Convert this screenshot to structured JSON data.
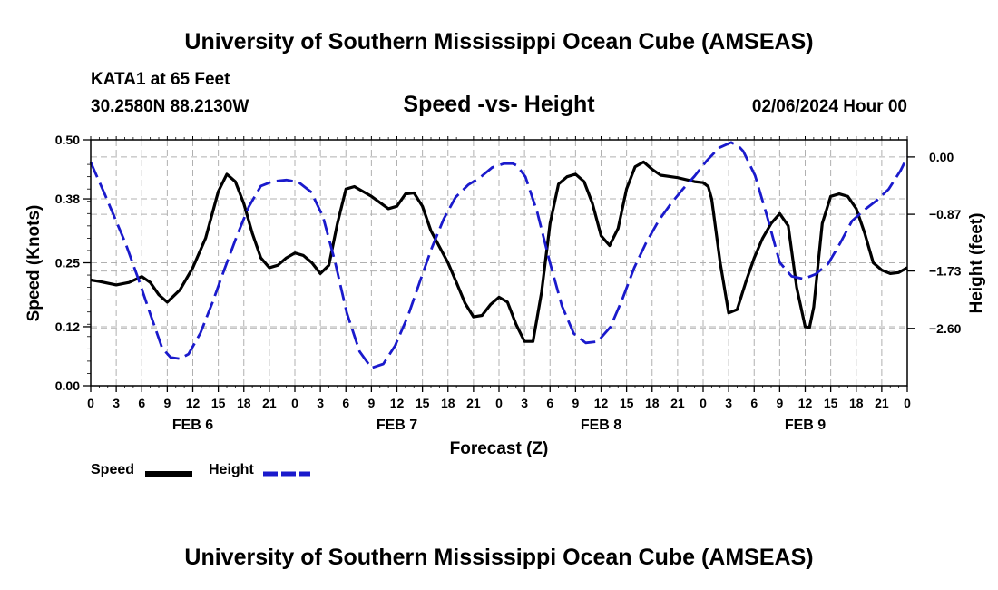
{
  "header": {
    "title": "University of Southern Mississippi Ocean Cube (AMSEAS)",
    "station": "KATA1 at 65 Feet",
    "coordinates": "30.2580N  88.2130W",
    "chart_title": "Speed -vs- Height",
    "date": "02/06/2024 Hour 00"
  },
  "footer": {
    "title": "University of Southern Mississippi Ocean Cube (AMSEAS)"
  },
  "legend": {
    "speed_label": "Speed",
    "height_label": "Height",
    "speed_color": "#000000",
    "height_color": "#1a1acc"
  },
  "chart_data": {
    "type": "line",
    "title": "Speed -vs- Height",
    "xlabel": "Forecast (Z)",
    "ylabel_left": "Speed (Knots)",
    "ylabel_right": "Height (feet)",
    "x_range_hours": [
      0,
      96
    ],
    "x_tick_labels": [
      "0",
      "3",
      "6",
      "9",
      "12",
      "15",
      "18",
      "21",
      "0",
      "3",
      "6",
      "9",
      "12",
      "15",
      "18",
      "21",
      "0",
      "3",
      "6",
      "9",
      "12",
      "15",
      "18",
      "21",
      "0",
      "3",
      "6",
      "9",
      "12",
      "15",
      "18",
      "21",
      "0"
    ],
    "day_labels": [
      "FEB 6",
      "FEB 7",
      "FEB 8",
      "FEB 9"
    ],
    "y_left": {
      "range": [
        0,
        0.5
      ],
      "ticks": [
        0.0,
        0.12,
        0.25,
        0.38,
        0.5
      ],
      "tick_labels": [
        "0.00",
        "0.12",
        "0.25",
        "0.38",
        "0.50"
      ]
    },
    "y_right": {
      "range": [
        -3.47,
        0.26
      ],
      "ticks": [
        0.0,
        -0.87,
        -1.73,
        -2.6
      ],
      "tick_labels": [
        "0.00",
        "−0.87",
        "−1.73",
        "−2.60"
      ]
    },
    "grid": true,
    "series": [
      {
        "name": "Speed",
        "axis": "left",
        "color": "#000000",
        "points": [
          [
            0,
            0.215
          ],
          [
            1,
            0.212
          ],
          [
            3,
            0.205
          ],
          [
            4.5,
            0.21
          ],
          [
            6,
            0.222
          ],
          [
            7,
            0.21
          ],
          [
            8,
            0.185
          ],
          [
            9,
            0.17
          ],
          [
            10.5,
            0.195
          ],
          [
            12,
            0.24
          ],
          [
            13.5,
            0.3
          ],
          [
            15,
            0.395
          ],
          [
            16,
            0.43
          ],
          [
            17,
            0.415
          ],
          [
            18,
            0.37
          ],
          [
            19,
            0.31
          ],
          [
            20,
            0.26
          ],
          [
            21,
            0.24
          ],
          [
            22,
            0.245
          ],
          [
            23,
            0.26
          ],
          [
            24,
            0.27
          ],
          [
            25,
            0.265
          ],
          [
            26,
            0.25
          ],
          [
            27,
            0.228
          ],
          [
            28,
            0.245
          ],
          [
            29,
            0.33
          ],
          [
            30,
            0.4
          ],
          [
            31,
            0.405
          ],
          [
            33,
            0.385
          ],
          [
            35,
            0.36
          ],
          [
            36,
            0.365
          ],
          [
            37,
            0.39
          ],
          [
            38,
            0.392
          ],
          [
            39,
            0.365
          ],
          [
            40,
            0.315
          ],
          [
            42,
            0.25
          ],
          [
            43,
            0.21
          ],
          [
            44,
            0.168
          ],
          [
            45,
            0.14
          ],
          [
            46,
            0.143
          ],
          [
            47,
            0.165
          ],
          [
            48,
            0.18
          ],
          [
            49,
            0.17
          ],
          [
            50,
            0.125
          ],
          [
            51,
            0.09
          ],
          [
            52,
            0.09
          ],
          [
            53,
            0.19
          ],
          [
            54,
            0.33
          ],
          [
            55,
            0.41
          ],
          [
            56,
            0.425
          ],
          [
            57,
            0.43
          ],
          [
            58,
            0.415
          ],
          [
            59,
            0.37
          ],
          [
            60,
            0.305
          ],
          [
            61,
            0.285
          ],
          [
            62,
            0.32
          ],
          [
            63,
            0.4
          ],
          [
            64,
            0.445
          ],
          [
            65,
            0.455
          ],
          [
            66,
            0.44
          ],
          [
            67,
            0.428
          ],
          [
            69,
            0.423
          ],
          [
            71,
            0.415
          ],
          [
            72,
            0.413
          ],
          [
            72.6,
            0.405
          ],
          [
            73,
            0.38
          ],
          [
            74,
            0.25
          ],
          [
            75,
            0.148
          ],
          [
            76,
            0.155
          ],
          [
            77,
            0.21
          ],
          [
            78,
            0.26
          ],
          [
            79,
            0.3
          ],
          [
            80,
            0.33
          ],
          [
            81,
            0.35
          ],
          [
            82,
            0.325
          ],
          [
            83,
            0.2
          ],
          [
            84,
            0.12
          ],
          [
            84.5,
            0.118
          ],
          [
            85,
            0.16
          ],
          [
            86,
            0.33
          ],
          [
            87,
            0.385
          ],
          [
            88,
            0.39
          ],
          [
            89,
            0.385
          ],
          [
            90,
            0.36
          ],
          [
            91,
            0.31
          ],
          [
            92,
            0.25
          ],
          [
            93,
            0.235
          ],
          [
            94,
            0.228
          ],
          [
            95,
            0.23
          ],
          [
            96,
            0.24
          ]
        ]
      },
      {
        "name": "Height",
        "axis": "right",
        "color": "#1a1acc",
        "points": [
          [
            0,
            -0.08
          ],
          [
            0.5,
            -0.23
          ],
          [
            1.6,
            -0.55
          ],
          [
            4.1,
            -1.31
          ],
          [
            5.6,
            -1.85
          ],
          [
            7,
            -2.38
          ],
          [
            8.4,
            -2.9
          ],
          [
            9.4,
            -3.04
          ],
          [
            10.5,
            -3.06
          ],
          [
            11.5,
            -2.99
          ],
          [
            12.9,
            -2.67
          ],
          [
            14.3,
            -2.21
          ],
          [
            15.7,
            -1.71
          ],
          [
            17.2,
            -1.19
          ],
          [
            18.6,
            -0.75
          ],
          [
            20,
            -0.44
          ],
          [
            21.4,
            -0.37
          ],
          [
            23,
            -0.35
          ],
          [
            24.4,
            -0.38
          ],
          [
            25.9,
            -0.53
          ],
          [
            27.3,
            -0.9
          ],
          [
            28.7,
            -1.58
          ],
          [
            30.1,
            -2.36
          ],
          [
            31.6,
            -2.95
          ],
          [
            33,
            -3.2
          ],
          [
            34.4,
            -3.14
          ],
          [
            35.8,
            -2.86
          ],
          [
            37.3,
            -2.41
          ],
          [
            38.7,
            -1.89
          ],
          [
            40.1,
            -1.38
          ],
          [
            41.5,
            -0.94
          ],
          [
            42.9,
            -0.61
          ],
          [
            44.4,
            -0.42
          ],
          [
            45.8,
            -0.31
          ],
          [
            47.2,
            -0.16
          ],
          [
            48.6,
            -0.1
          ],
          [
            49.6,
            -0.1
          ],
          [
            50.1,
            -0.13
          ],
          [
            51.1,
            -0.3
          ],
          [
            52.5,
            -0.84
          ],
          [
            54,
            -1.61
          ],
          [
            55.4,
            -2.26
          ],
          [
            56.8,
            -2.68
          ],
          [
            58.2,
            -2.82
          ],
          [
            59.6,
            -2.8
          ],
          [
            61.1,
            -2.58
          ],
          [
            62.5,
            -2.16
          ],
          [
            63.9,
            -1.68
          ],
          [
            65.3,
            -1.3
          ],
          [
            66.8,
            -0.96
          ],
          [
            68.2,
            -0.71
          ],
          [
            69.6,
            -0.49
          ],
          [
            71,
            -0.29
          ],
          [
            72.4,
            -0.06
          ],
          [
            73.9,
            0.14
          ],
          [
            75.3,
            0.22
          ],
          [
            76.2,
            0.16
          ],
          [
            76.7,
            0.09
          ],
          [
            78.1,
            -0.28
          ],
          [
            79.5,
            -0.89
          ],
          [
            81,
            -1.6
          ],
          [
            82.4,
            -1.81
          ],
          [
            83.8,
            -1.85
          ],
          [
            85.2,
            -1.78
          ],
          [
            86.7,
            -1.62
          ],
          [
            88.1,
            -1.31
          ],
          [
            89.5,
            -0.97
          ],
          [
            90.9,
            -0.81
          ],
          [
            92.4,
            -0.66
          ],
          [
            93.8,
            -0.49
          ],
          [
            95.2,
            -0.21
          ],
          [
            96,
            0.0
          ]
        ]
      }
    ]
  }
}
